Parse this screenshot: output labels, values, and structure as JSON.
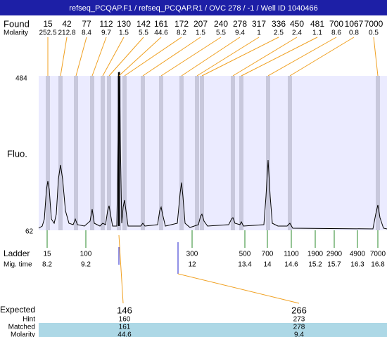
{
  "title": "refseq_PCQAP.F1 / refseq_PCQAP.R1 / OVC 278 / -1 / Well ID 1040466",
  "found": {
    "label": "Found",
    "sizes": [
      15,
      42,
      77,
      112,
      130,
      142,
      161,
      172,
      207,
      240,
      278,
      317,
      336,
      450,
      481,
      700,
      1067,
      7000
    ],
    "molarity_label": "Molarity",
    "molarities": [
      252.5,
      212.8,
      8.4,
      9.7,
      1.5,
      5.5,
      44.6,
      8.2,
      1.5,
      5.5,
      9.4,
      1,
      2.5,
      2.4,
      1.1,
      8.6,
      0.8,
      0.5
    ]
  },
  "y_axis": {
    "label": "Fluo.",
    "max": 484,
    "min": 62
  },
  "ladder": {
    "label": "Ladder",
    "sizes": [
      15,
      100,
      300,
      500,
      700,
      1100,
      1900,
      2900,
      4900,
      7000
    ],
    "mig_label": "Mig. time",
    "mig_times": [
      8.2,
      9.2,
      12,
      13.4,
      14,
      14.6,
      15.2,
      15.7,
      16.3,
      16.8
    ]
  },
  "expected": {
    "label": "Expected",
    "values": [
      146,
      266
    ],
    "hint_label": "Hint",
    "hint": [
      160,
      273
    ],
    "matched_label": "Matched",
    "matched": [
      161,
      278
    ],
    "molarity_label": "Molarity",
    "molarity": [
      44.6,
      9.4
    ]
  }
}
